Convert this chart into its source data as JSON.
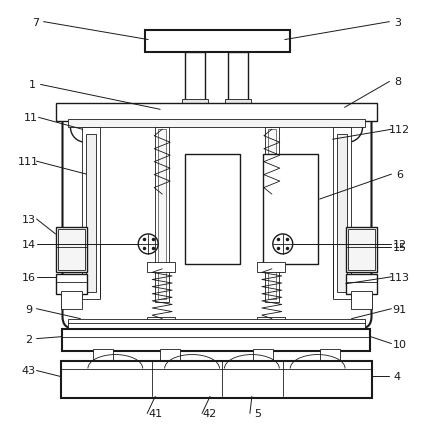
{
  "background_color": "#ffffff",
  "line_color": "#1a1a1a",
  "lw_main": 1.5,
  "lw_med": 1.0,
  "lw_thin": 0.6,
  "fig_width": 4.31,
  "fig_height": 4.31,
  "dpi": 100
}
